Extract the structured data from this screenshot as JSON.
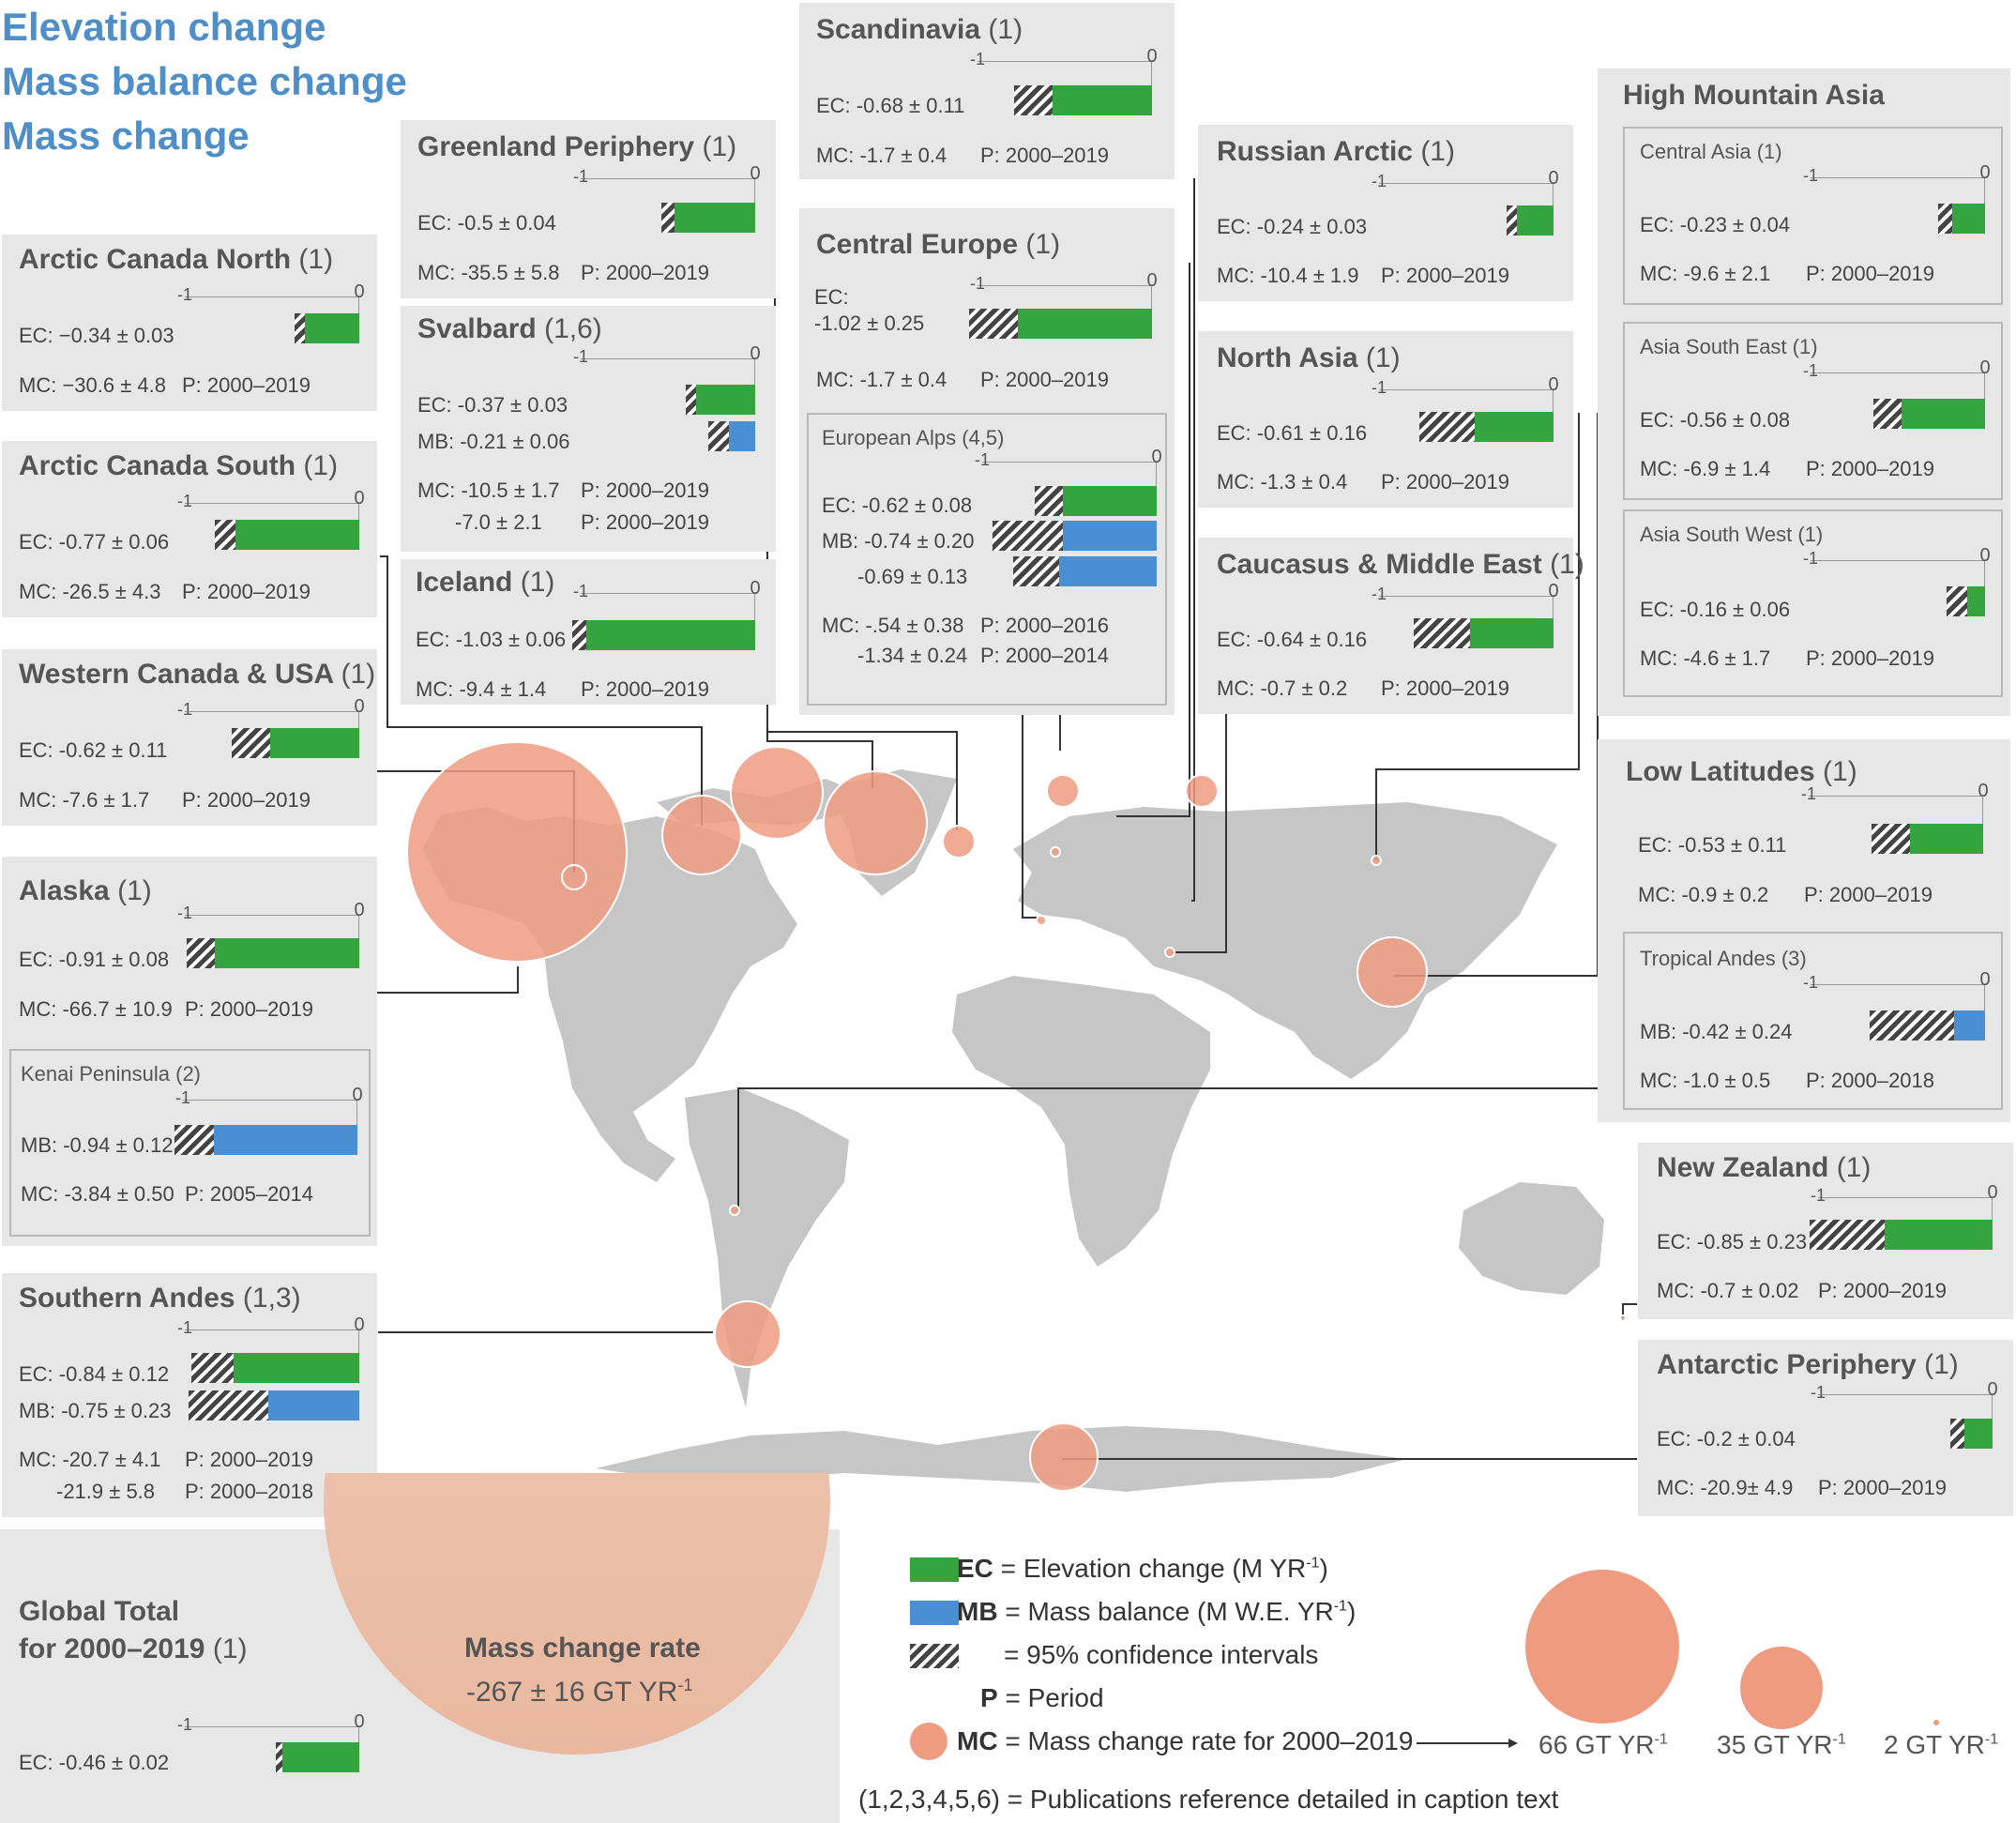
{
  "header": [
    "Elevation change",
    "Mass balance change",
    "Mass change"
  ],
  "colors": {
    "ec": "#34a43f",
    "mb": "#4a8fd4",
    "mc": "#ee9b80",
    "land": "#c6c6c6",
    "panel": "#e7e7e7"
  },
  "regions": [
    {
      "id": "arctic-canada-north",
      "title": "Arctic Canada North",
      "ref": "(1)",
      "ec": "EC: −0.34 ± 0.03",
      "mc": "MC: −30.6 ± 4.8",
      "p": "P: 2000–2019"
    },
    {
      "id": "arctic-canada-south",
      "title": "Arctic Canada South",
      "ref": "(1)",
      "ec": "EC: -0.77 ± 0.06",
      "mc": "MC: -26.5 ± 4.3",
      "p": "P: 2000–2019"
    },
    {
      "id": "western-canada-usa",
      "title": "Western Canada & USA",
      "ref": "(1)",
      "ec": "EC: -0.62 ± 0.11",
      "mc": "MC: -7.6 ± 1.7",
      "p": "P: 2000–2019"
    },
    {
      "id": "alaska",
      "title": "Alaska",
      "ref": "(1)",
      "ec": "EC: -0.91 ± 0.08",
      "mc": "MC: -66.7 ± 10.9",
      "p": "P: 2000–2019",
      "sub": {
        "title": "Kenai Peninsula (2)",
        "mb": "MB: -0.94 ± 0.12",
        "mc": "MC: -3.84 ± 0.50",
        "p": "P: 2005–2014"
      }
    },
    {
      "id": "southern-andes",
      "title": "Southern Andes",
      "ref": "(1,3)",
      "ec": "EC: -0.84 ± 0.12",
      "mb": "MB: -0.75 ± 0.23",
      "mc": "MC: -20.7 ± 4.1",
      "p": "P: 2000–2019",
      "mc2": "-21.9 ± 5.8",
      "p2": "P: 2000–2018"
    },
    {
      "id": "greenland-periphery",
      "title": "Greenland Periphery",
      "ref": "(1)",
      "ec": "EC: -0.5 ± 0.04",
      "mc": "MC: -35.5 ± 5.8",
      "p": "P: 2000–2019"
    },
    {
      "id": "svalbard",
      "title": "Svalbard",
      "ref": "(1,6)",
      "ec": "EC: -0.37 ± 0.03",
      "mb": "MB: -0.21 ± 0.06",
      "mc": "MC: -10.5 ± 1.7",
      "p": "P: 2000–2019",
      "mc2": "-7.0 ± 2.1",
      "p2": "P: 2000–2019"
    },
    {
      "id": "iceland",
      "title": "Iceland",
      "ref": "(1)",
      "ec": "EC: -1.03 ± 0.06",
      "mc": "MC: -9.4 ± 1.4",
      "p": "P: 2000–2019"
    },
    {
      "id": "scandinavia",
      "title": "Scandinavia",
      "ref": "(1)",
      "ec": "EC: -0.68 ± 0.11",
      "mc": "MC: -1.7 ± 0.4",
      "p": "P: 2000–2019"
    },
    {
      "id": "central-europe",
      "title": "Central Europe",
      "ref": "(1)",
      "ec_a": "EC:",
      "ec_b": "-1.02 ± 0.25",
      "mc": "MC: -1.7 ± 0.4",
      "p": "P: 2000–2019",
      "sub": {
        "title": "European Alps (4,5)",
        "ec": "EC: -0.62 ± 0.08",
        "mb": "MB: -0.74 ± 0.20",
        "mb2": "-0.69 ± 0.13",
        "mc": "MC: -.54 ± 0.38",
        "p": "P: 2000–2016",
        "mc2": "-1.34 ± 0.24",
        "p2": "P: 2000–2014"
      }
    },
    {
      "id": "russian-arctic",
      "title": "Russian Arctic",
      "ref": "(1)",
      "ec": "EC: -0.24 ± 0.03",
      "mc": "MC: -10.4 ± 1.9",
      "p": "P: 2000–2019"
    },
    {
      "id": "north-asia",
      "title": "North Asia",
      "ref": "(1)",
      "ec": "EC: -0.61 ± 0.16",
      "mc": "MC: -1.3 ± 0.4",
      "p": "P: 2000–2019"
    },
    {
      "id": "caucasus",
      "title": "Caucasus & Middle East",
      "ref": "(1)",
      "ec": "EC: -0.64 ± 0.16",
      "mc": "MC: -0.7 ± 0.2",
      "p": "P: 2000–2019"
    },
    {
      "id": "high-mountain-asia",
      "title": "High Mountain Asia",
      "subs": [
        {
          "title": "Central Asia (1)",
          "ec": "EC: -0.23 ± 0.04",
          "mc": "MC: -9.6 ± 2.1",
          "p": "P: 2000–2019"
        },
        {
          "title": "Asia South East (1)",
          "ec": "EC: -0.56 ± 0.08",
          "mc": "MC: -6.9 ± 1.4",
          "p": "P: 2000–2019"
        },
        {
          "title": "Asia South West (1)",
          "ec": "EC: -0.16 ± 0.06",
          "mc": "MC: -4.6 ± 1.7",
          "p": "P: 2000–2019"
        }
      ]
    },
    {
      "id": "low-latitudes",
      "title": "Low Latitudes",
      "ref": "(1)",
      "ec": "EC: -0.53 ± 0.11",
      "mc": "MC: -0.9 ± 0.2",
      "p": "P: 2000–2019",
      "sub": {
        "title": "Tropical Andes (3)",
        "mb": "MB: -0.42 ± 0.24",
        "mc": "MC: -1.0 ± 0.5",
        "p": "P: 2000–2018"
      }
    },
    {
      "id": "new-zealand",
      "title": "New Zealand",
      "ref": "(1)",
      "ec": "EC: -0.85 ± 0.23",
      "mc": "MC: -0.7 ± 0.02",
      "p": "P: 2000–2019"
    },
    {
      "id": "antarctic-periphery",
      "title": "Antarctic Periphery",
      "ref": "(1)",
      "ec": "EC: -0.2 ± 0.04",
      "mc": "MC: -20.9± 4.9",
      "p": "P: 2000–2019"
    }
  ],
  "global": {
    "title1": "Global Total",
    "title2": "for 2000–2019",
    "ref": "(1)",
    "ec": "EC: -0.46 ± 0.02",
    "rate_title": "Mass change rate",
    "rate_value": "-267 ± 16 GT YR",
    "rate_sup": "-1"
  },
  "scale_labels": {
    "min": "-1",
    "max": "0"
  },
  "legend": {
    "ec_abbr": "EC",
    "ec_text": " = Elevation change (M YR",
    "ec_sup": "-1",
    "ec_close": ")",
    "mb_abbr": "MB",
    "mb_text": " = Mass balance (M W.E. YR",
    "mb_sup": "-1",
    "mb_close": ")",
    "ci_text": "= 95% confidence intervals",
    "p_abbr": "P",
    "p_text": " = Period",
    "mc_abbr": "MC",
    "mc_text": " = Mass change rate for 2000–2019",
    "refs": "(1,2,3,4,5,6) = Publications reference detailed in caption text",
    "sizes": [
      {
        "label": "66 GT YR",
        "sup": "-1",
        "gt": 66
      },
      {
        "label": "35 GT YR",
        "sup": "-1",
        "gt": 35
      },
      {
        "label": "2 GT YR",
        "sup": "-1",
        "gt": 2
      }
    ]
  },
  "chart_data": {
    "type": "bar",
    "scale": {
      "xlim": [
        -1,
        0
      ]
    },
    "series": [
      {
        "name": "EC",
        "unit": "M YR-1",
        "values": [
          {
            "region": "Arctic Canada North",
            "v": -0.34,
            "ci": 0.03
          },
          {
            "region": "Arctic Canada South",
            "v": -0.77,
            "ci": 0.06
          },
          {
            "region": "Western Canada & USA",
            "v": -0.62,
            "ci": 0.11
          },
          {
            "region": "Alaska",
            "v": -0.91,
            "ci": 0.08
          },
          {
            "region": "Southern Andes",
            "v": -0.84,
            "ci": 0.12
          },
          {
            "region": "Greenland Periphery",
            "v": -0.5,
            "ci": 0.04
          },
          {
            "region": "Svalbard",
            "v": -0.37,
            "ci": 0.03
          },
          {
            "region": "Iceland",
            "v": -1.03,
            "ci": 0.06
          },
          {
            "region": "Scandinavia",
            "v": -0.68,
            "ci": 0.11
          },
          {
            "region": "Central Europe",
            "v": -1.02,
            "ci": 0.25
          },
          {
            "region": "European Alps",
            "v": -0.62,
            "ci": 0.08
          },
          {
            "region": "Russian Arctic",
            "v": -0.24,
            "ci": 0.03
          },
          {
            "region": "North Asia",
            "v": -0.61,
            "ci": 0.16
          },
          {
            "region": "Caucasus & Middle East",
            "v": -0.64,
            "ci": 0.16
          },
          {
            "region": "Central Asia",
            "v": -0.23,
            "ci": 0.04
          },
          {
            "region": "Asia South East",
            "v": -0.56,
            "ci": 0.08
          },
          {
            "region": "Asia South West",
            "v": -0.16,
            "ci": 0.06
          },
          {
            "region": "Low Latitudes",
            "v": -0.53,
            "ci": 0.11
          },
          {
            "region": "New Zealand",
            "v": -0.85,
            "ci": 0.23
          },
          {
            "region": "Antarctic Periphery",
            "v": -0.2,
            "ci": 0.04
          },
          {
            "region": "Global Total",
            "v": -0.46,
            "ci": 0.02
          }
        ]
      },
      {
        "name": "MB",
        "unit": "M W.E. YR-1",
        "values": [
          {
            "region": "Kenai Peninsula",
            "v": -0.94,
            "ci": 0.12
          },
          {
            "region": "Southern Andes",
            "v": -0.75,
            "ci": 0.23
          },
          {
            "region": "Svalbard",
            "v": -0.21,
            "ci": 0.06
          },
          {
            "region": "European Alps",
            "v": -0.74,
            "ci": 0.2
          },
          {
            "region": "European Alps",
            "v": -0.69,
            "ci": 0.13
          },
          {
            "region": "Tropical Andes",
            "v": -0.42,
            "ci": 0.24
          }
        ]
      },
      {
        "name": "MC",
        "unit": "GT YR-1",
        "values": [
          {
            "region": "Alaska",
            "v": -66.7
          },
          {
            "region": "Arctic Canada North",
            "v": -30.6
          },
          {
            "region": "Arctic Canada South",
            "v": -26.5
          },
          {
            "region": "Greenland Periphery",
            "v": -35.5
          },
          {
            "region": "Iceland",
            "v": -9.4
          },
          {
            "region": "Svalbard",
            "v": -10.5
          },
          {
            "region": "Russian Arctic",
            "v": -10.4
          },
          {
            "region": "Scandinavia",
            "v": -1.7
          },
          {
            "region": "Central Europe",
            "v": -1.7
          },
          {
            "region": "North Asia",
            "v": -1.3
          },
          {
            "region": "Caucasus & Middle East",
            "v": -0.7
          },
          {
            "region": "High Mountain Asia",
            "v": -21.1
          },
          {
            "region": "Low Latitudes",
            "v": -0.9
          },
          {
            "region": "Southern Andes",
            "v": -20.7
          },
          {
            "region": "New Zealand",
            "v": -0.7
          },
          {
            "region": "Antarctic Periphery",
            "v": -20.9
          },
          {
            "region": "Western Canada & USA",
            "v": -7.6
          }
        ]
      }
    ]
  }
}
